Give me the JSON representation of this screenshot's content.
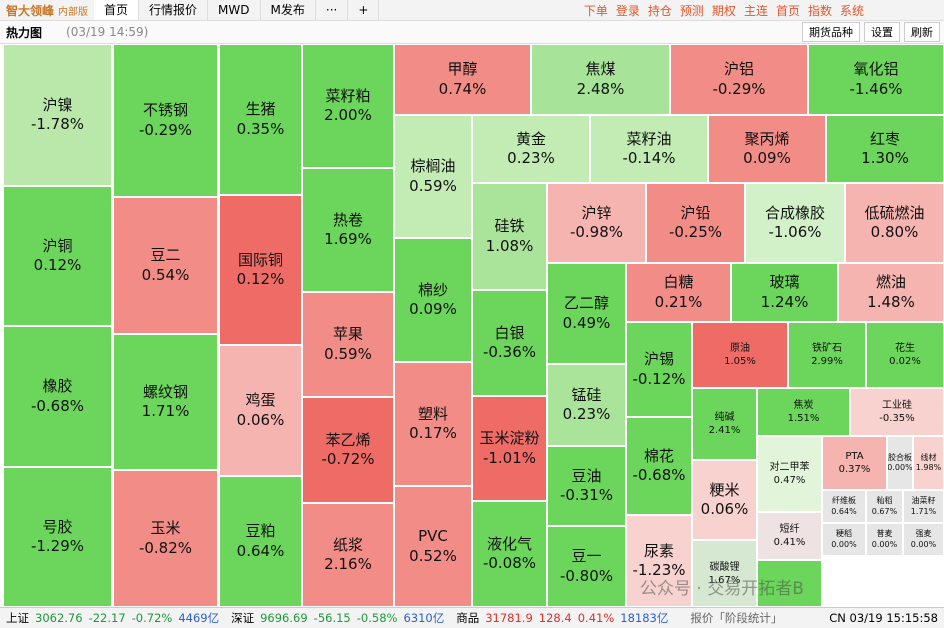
{
  "header": {
    "logo": "智大领峰",
    "edition": "内部版",
    "tabs": [
      "首页",
      "行情报价",
      "MWD",
      "M发布"
    ],
    "more": "···",
    "add": "+",
    "menu": [
      "下单",
      "登录",
      "持仓",
      "预测",
      "期权",
      "主连",
      "首页",
      "指数",
      "系统"
    ]
  },
  "toolbar": {
    "title": "热力图",
    "time": "(03/19 14:59)",
    "buttons": [
      "期货品种",
      "设置",
      "刷新"
    ]
  },
  "cells": [
    {
      "name": "沪镍",
      "change": "-1.78%",
      "color": "#b9e8aa"
    },
    {
      "name": "沪铜",
      "change": "0.12%",
      "color": "#6bd65b"
    },
    {
      "name": "橡胶",
      "change": "-0.68%",
      "color": "#6bd65b"
    },
    {
      "name": "号胶",
      "change": "-1.29%",
      "color": "#6bd65b"
    },
    {
      "name": "不锈钢",
      "change": "-0.29%",
      "color": "#6bd65b"
    },
    {
      "name": "豆二",
      "change": "0.54%",
      "color": "#f28c87"
    },
    {
      "name": "螺纹钢",
      "change": "1.71%",
      "color": "#6bd65b"
    },
    {
      "name": "玉米",
      "change": "-0.82%",
      "color": "#f28c87"
    },
    {
      "name": "生猪",
      "change": "0.35%",
      "color": "#6bd65b"
    },
    {
      "name": "国际铜",
      "change": "0.12%",
      "color": "#ef6b66"
    },
    {
      "name": "鸡蛋",
      "change": "0.06%",
      "color": "#f6b4b0"
    },
    {
      "name": "豆粕",
      "change": "0.64%",
      "color": "#6bd65b"
    },
    {
      "name": "菜籽粕",
      "change": "2.00%",
      "color": "#6bd65b"
    },
    {
      "name": "热卷",
      "change": "1.69%",
      "color": "#6bd65b"
    },
    {
      "name": "苹果",
      "change": "0.59%",
      "color": "#f28c87"
    },
    {
      "name": "苯乙烯",
      "change": "-0.72%",
      "color": "#ef6b66"
    },
    {
      "name": "纸浆",
      "change": "2.16%",
      "color": "#f28c87"
    },
    {
      "name": "甲醇",
      "change": "0.74%",
      "color": "#f28c87"
    },
    {
      "name": "棕榈油",
      "change": "0.59%",
      "color": "#c3ecb5"
    },
    {
      "name": "棉纱",
      "change": "0.09%",
      "color": "#6bd65b"
    },
    {
      "name": "塑料",
      "change": "0.17%",
      "color": "#f28c87"
    },
    {
      "name": "PVC",
      "change": "0.52%",
      "color": "#f28c87"
    },
    {
      "name": "硅铁",
      "change": "1.08%",
      "color": "#aae49b"
    },
    {
      "name": "白银",
      "change": "-0.36%",
      "color": "#6bd65b"
    },
    {
      "name": "玉米淀粉",
      "change": "-1.01%",
      "color": "#ef6b66"
    },
    {
      "name": "液化气",
      "change": "-0.08%",
      "color": "#6bd65b"
    },
    {
      "name": "焦煤",
      "change": "2.48%",
      "color": "#a7e399"
    },
    {
      "name": "沪铝",
      "change": "-0.29%",
      "color": "#f28c87"
    },
    {
      "name": "氧化铝",
      "change": "-1.46%",
      "color": "#6bd65b"
    },
    {
      "name": "黄金",
      "change": "0.23%",
      "color": "#c3ecb5"
    },
    {
      "name": "菜籽油",
      "change": "-0.14%",
      "color": "#c3ecb5"
    },
    {
      "name": "聚丙烯",
      "change": "0.09%",
      "color": "#f28c87"
    },
    {
      "name": "红枣",
      "change": "1.30%",
      "color": "#6bd65b"
    },
    {
      "name": "沪锌",
      "change": "-0.98%",
      "color": "#f6b4b0"
    },
    {
      "name": "沪铅",
      "change": "-0.25%",
      "color": "#f28c87"
    },
    {
      "name": "合成橡胶",
      "change": "-1.06%",
      "color": "#d3f1c8"
    },
    {
      "name": "低硫燃油",
      "change": "0.80%",
      "color": "#f6b4b0"
    },
    {
      "name": "乙二醇",
      "change": "0.49%",
      "color": "#6bd65b"
    },
    {
      "name": "锰硅",
      "change": "0.23%",
      "color": "#aae49b"
    },
    {
      "name": "豆油",
      "change": "-0.31%",
      "color": "#6bd65b"
    },
    {
      "name": "豆一",
      "change": "-0.80%",
      "color": "#6bd65b"
    },
    {
      "name": "白糖",
      "change": "0.21%",
      "color": "#f28c87"
    },
    {
      "name": "玻璃",
      "change": "1.24%",
      "color": "#6bd65b"
    },
    {
      "name": "燃油",
      "change": "1.48%",
      "color": "#f6b4b0"
    },
    {
      "name": "沪锡",
      "change": "-0.12%",
      "color": "#6bd65b"
    },
    {
      "name": "原油",
      "change": "1.05%",
      "color": "#ef6b66"
    },
    {
      "name": "铁矿石",
      "change": "2.99%",
      "color": "#6bd65b"
    },
    {
      "name": "花生",
      "change": "0.02%",
      "color": "#6bd65b"
    },
    {
      "name": "棉花",
      "change": "-0.68%",
      "color": "#6bd65b"
    },
    {
      "name": "尿素",
      "change": "-1.23%",
      "color": "#f8d2cf"
    },
    {
      "name": "纯碱",
      "change": "2.41%",
      "color": "#6bd65b"
    },
    {
      "name": "焦炭",
      "change": "1.51%",
      "color": "#6bd65b"
    },
    {
      "name": "工业硅",
      "change": "-0.35%",
      "color": "#f8d2cf"
    },
    {
      "name": "对二甲苯",
      "change": "0.47%",
      "color": "#e2f5da"
    },
    {
      "name": "PTA",
      "change": "0.37%",
      "color": "#f6b4b0"
    },
    {
      "name": "胶合板",
      "change": "0.00%",
      "color": "#e6e6e6"
    },
    {
      "name": "线材",
      "change": "1.98%",
      "color": "#f8d2cf"
    },
    {
      "name": "粳米",
      "change": "0.06%",
      "color": "#f8d2cf"
    },
    {
      "name": "短纤",
      "change": "0.41%",
      "color": "#eee2e2"
    },
    {
      "name": "碳酸锂",
      "change": "1.67%",
      "color": "#d6e8d2"
    },
    {
      "name": "纤维板",
      "change": "0.64%",
      "color": "#e6e6e6"
    },
    {
      "name": "籼稻",
      "change": "0.67%",
      "color": "#e6e6e6"
    },
    {
      "name": "油菜籽",
      "change": "1.71%",
      "color": "#e6e6e6"
    },
    {
      "name": "粳稻",
      "change": "0.00%",
      "color": "#e6e6e6"
    },
    {
      "name": "普麦",
      "change": "0.00%",
      "color": "#e6e6e6"
    },
    {
      "name": "强麦",
      "change": "0.00%",
      "color": "#e6e6e6"
    }
  ],
  "status": {
    "items": [
      {
        "name": "上证",
        "price": "3062.76",
        "diff": "-22.17",
        "pct": "-0.72%",
        "amount": "4469亿"
      },
      {
        "name": "深证",
        "price": "9696.69",
        "diff": "-56.15",
        "pct": "-0.58%",
        "amount": "6310亿"
      },
      {
        "name": "商品",
        "price": "31781.9",
        "diff": "128.4",
        "pct": "0.41%",
        "amount": "18183亿"
      }
    ],
    "quote": "报价「阶段统计」",
    "clock": "CN 03/19 15:15:58"
  },
  "watermark": "公众号 · 交易开拓者B"
}
